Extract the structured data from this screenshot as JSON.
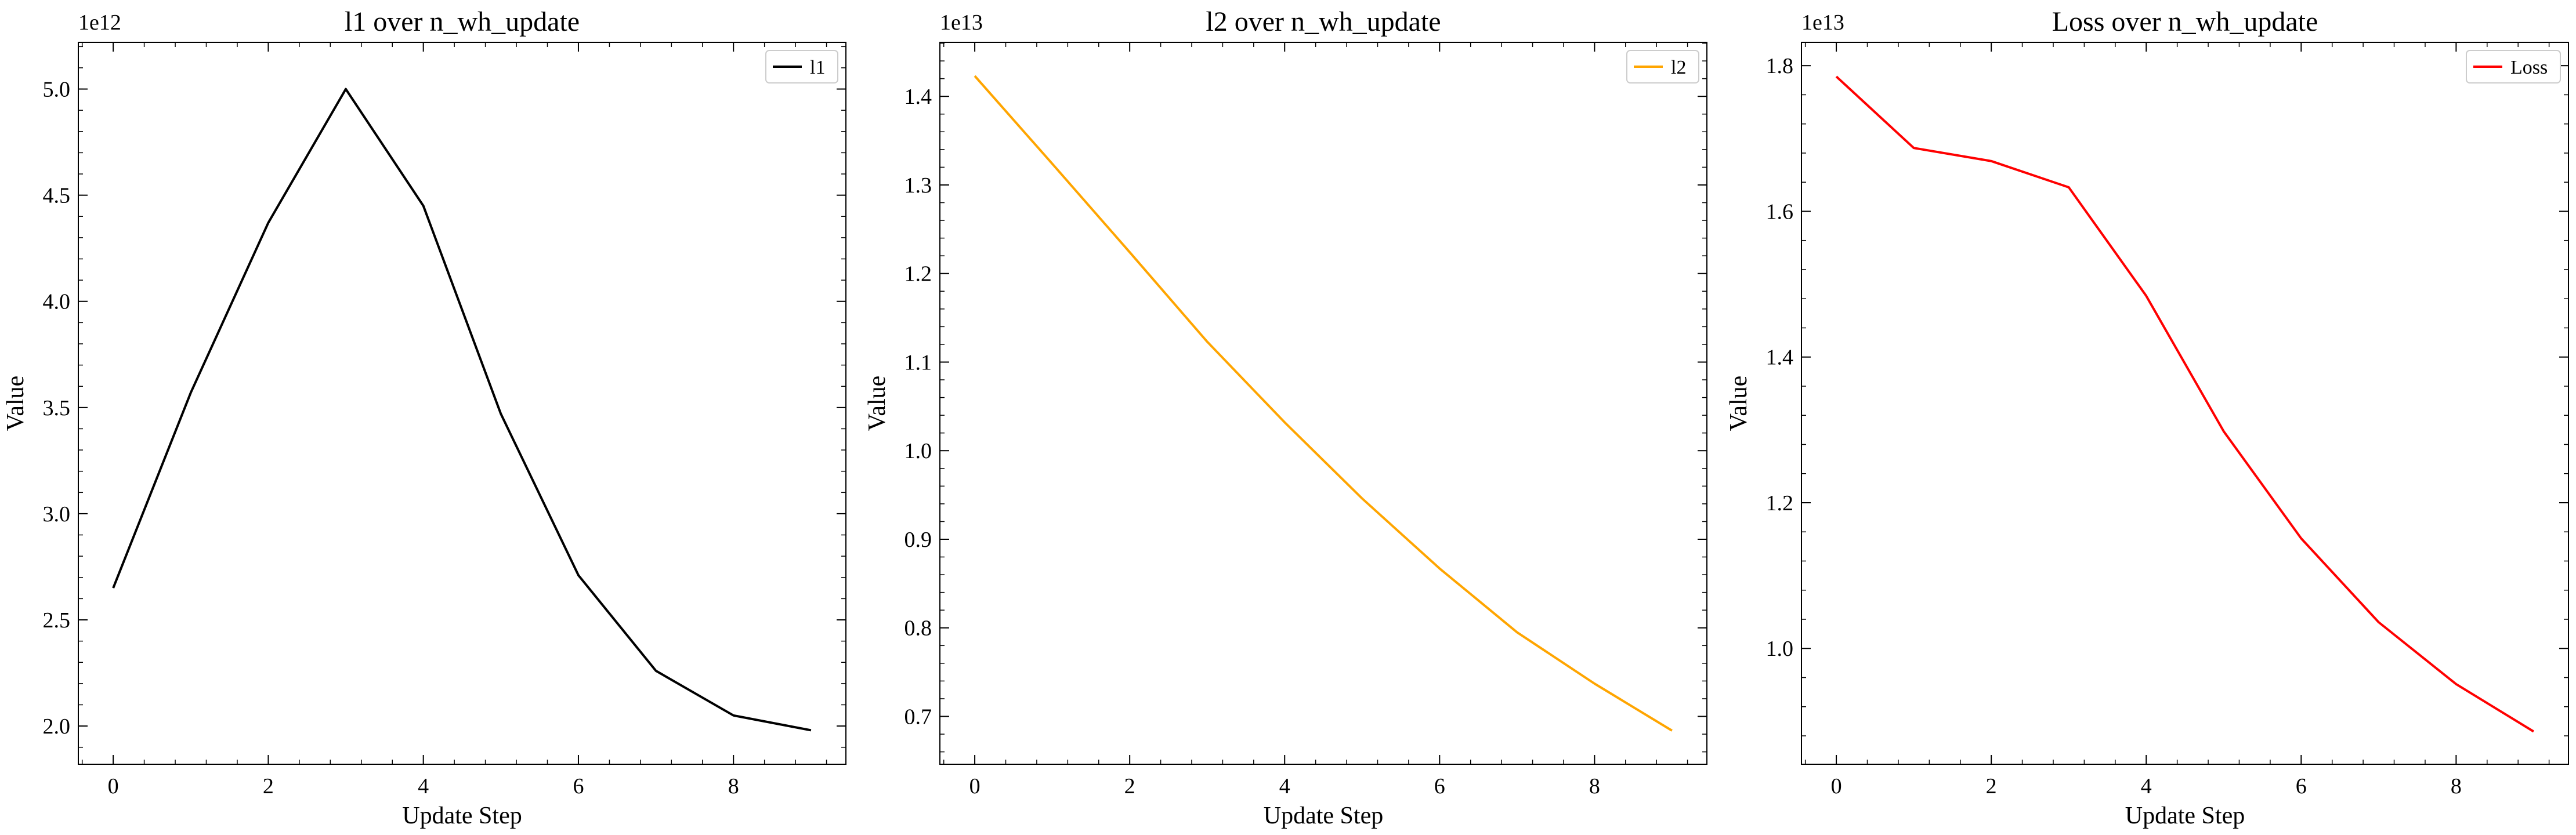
{
  "chart_data": [
    {
      "type": "line",
      "title": "l1 over n_wh_update",
      "xlabel": "Update Step",
      "ylabel": "Value",
      "offset_label": "1e12",
      "xlim": [
        -0.45,
        9.45
      ],
      "ylim": [
        1.82,
        5.22
      ],
      "xticks": [
        0,
        2,
        4,
        6,
        8
      ],
      "xtick_labels": [
        "0",
        "2",
        "4",
        "6",
        "8"
      ],
      "yticks": [
        2.0,
        2.5,
        3.0,
        3.5,
        4.0,
        4.5,
        5.0
      ],
      "ytick_labels": [
        "2.0",
        "2.5",
        "3.0",
        "3.5",
        "4.0",
        "4.5",
        "5.0"
      ],
      "legend": "top-right",
      "grid": false,
      "series": [
        {
          "name": "l1",
          "color": "#000000",
          "x": [
            0,
            1,
            2,
            3,
            4,
            5,
            6,
            7,
            8,
            9
          ],
          "y": [
            2.65,
            3.57,
            4.37,
            5.0,
            4.45,
            3.47,
            2.71,
            2.26,
            2.05,
            1.98
          ]
        }
      ]
    },
    {
      "type": "line",
      "title": "l2 over n_wh_update",
      "xlabel": "Update Step",
      "ylabel": "Value",
      "offset_label": "1e13",
      "xlim": [
        -0.45,
        9.45
      ],
      "ylim": [
        0.646,
        1.461
      ],
      "xticks": [
        0,
        2,
        4,
        6,
        8
      ],
      "xtick_labels": [
        "0",
        "2",
        "4",
        "6",
        "8"
      ],
      "yticks": [
        0.7,
        0.8,
        0.9,
        1.0,
        1.1,
        1.2,
        1.3,
        1.4
      ],
      "ytick_labels": [
        "0.7",
        "0.8",
        "0.9",
        "1.0",
        "1.1",
        "1.2",
        "1.3",
        "1.4"
      ],
      "legend": "top-right",
      "grid": false,
      "series": [
        {
          "name": "l2",
          "color": "#FFA500",
          "x": [
            0,
            1,
            2,
            3,
            4,
            5,
            6,
            7,
            8,
            9
          ],
          "y": [
            1.423,
            1.324,
            1.224,
            1.123,
            1.032,
            0.946,
            0.867,
            0.795,
            0.737,
            0.684
          ]
        }
      ]
    },
    {
      "type": "line",
      "title": "Loss over n_wh_update",
      "xlabel": "Update Step",
      "ylabel": "Value",
      "offset_label": "1e13",
      "xlim": [
        -0.45,
        9.45
      ],
      "ylim": [
        0.841,
        1.832
      ],
      "xticks": [
        0,
        2,
        4,
        6,
        8
      ],
      "xtick_labels": [
        "0",
        "2",
        "4",
        "6",
        "8"
      ],
      "yticks": [
        1.0,
        1.2,
        1.4,
        1.6,
        1.8
      ],
      "ytick_labels": [
        "1.0",
        "1.2",
        "1.4",
        "1.6",
        "1.8"
      ],
      "legend": "top-right",
      "grid": false,
      "series": [
        {
          "name": "Loss",
          "color": "#FF0000",
          "x": [
            0,
            1,
            2,
            3,
            4,
            5,
            6,
            7,
            8,
            9
          ],
          "y": [
            1.785,
            1.687,
            1.669,
            1.633,
            1.484,
            1.298,
            1.151,
            1.036,
            0.951,
            0.886
          ]
        }
      ]
    }
  ]
}
